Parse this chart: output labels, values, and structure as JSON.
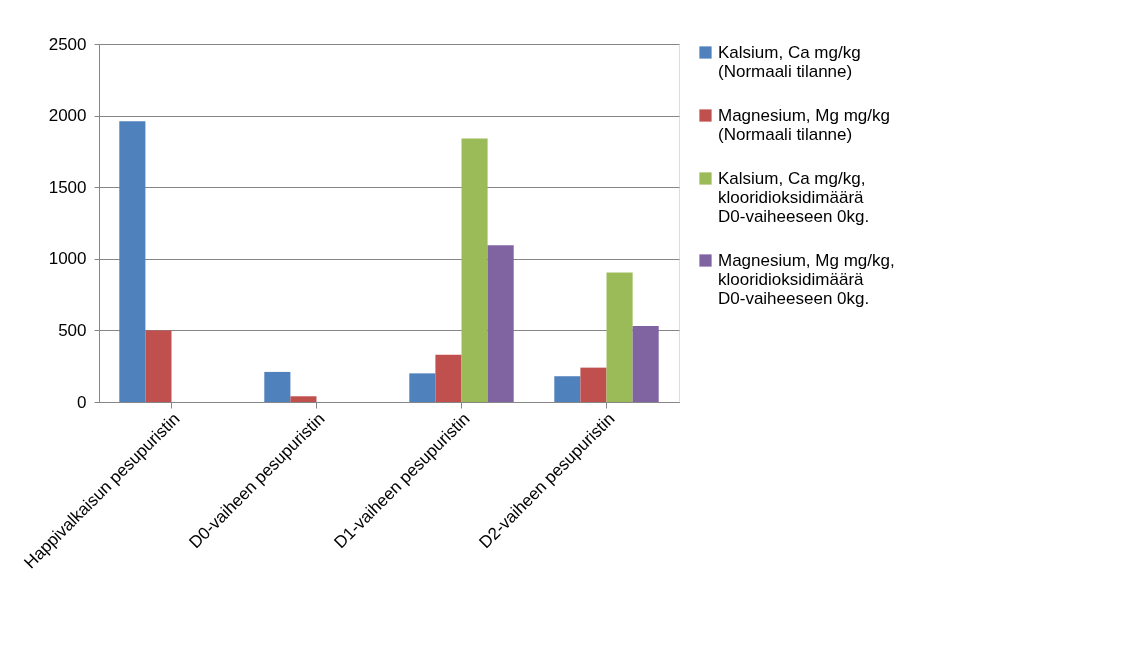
{
  "chart_data": {
    "type": "bar",
    "categories": [
      "Happivalkaisun pesupuristin",
      "D0-vaiheen pesupuristin",
      "D1-vaiheen pesupuristin",
      "D2-vaiheen pesupuristin"
    ],
    "series": [
      {
        "name": "Kalsium, Ca mg/kg (Normaali tilanne)",
        "color": "#4f81bd",
        "values": [
          1960,
          210,
          200,
          180
        ]
      },
      {
        "name": "Magnesium, Mg mg/kg (Normaali tilanne)",
        "color": "#c0504d",
        "values": [
          500,
          40,
          330,
          240
        ]
      },
      {
        "name": "Kalsium, Ca mg/kg, klooridioksidimäärä D0-vaiheeseen 0kg.",
        "color": "#9bbb59",
        "values": [
          null,
          null,
          1840,
          905
        ]
      },
      {
        "name": "Magnesium, Mg mg/kg, klooridioksidimäärä D0-vaiheeseen 0kg.",
        "color": "#8064a2",
        "values": [
          null,
          null,
          1095,
          530
        ]
      }
    ],
    "ylim": [
      0,
      2500
    ],
    "yticks": [
      0,
      500,
      1000,
      1500,
      2000,
      2500
    ],
    "grid": "y",
    "legend": "right"
  }
}
